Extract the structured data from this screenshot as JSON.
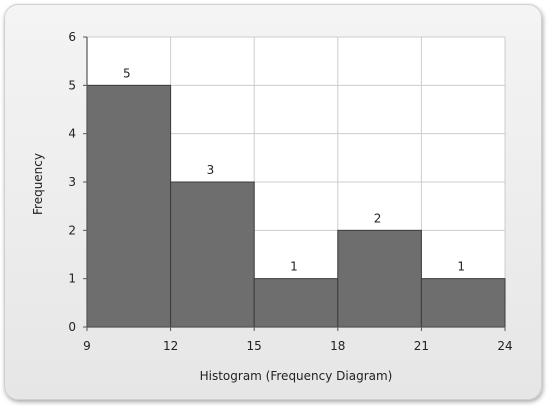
{
  "chart_data": {
    "type": "bar",
    "title": "",
    "xlabel": "Histogram (Frequency Diagram)",
    "ylabel": "Frequency",
    "bins": [
      {
        "from": 9,
        "to": 12,
        "value": 5
      },
      {
        "from": 12,
        "to": 15,
        "value": 3
      },
      {
        "from": 15,
        "to": 18,
        "value": 1
      },
      {
        "from": 18,
        "to": 21,
        "value": 2
      },
      {
        "from": 21,
        "to": 24,
        "value": 1
      }
    ],
    "data_labels": [
      "5",
      "3",
      "1",
      "2",
      "1"
    ],
    "xticks": [
      "9",
      "12",
      "15",
      "18",
      "21",
      "24"
    ],
    "yticks": [
      "0",
      "1",
      "2",
      "3",
      "4",
      "5",
      "6"
    ],
    "xlim": [
      9,
      24
    ],
    "ylim": [
      0,
      6
    ],
    "grid": true,
    "bar_color": "#6e6e6e",
    "bar_border_color": "#3c3c3c",
    "background_color": "#ffffff"
  }
}
